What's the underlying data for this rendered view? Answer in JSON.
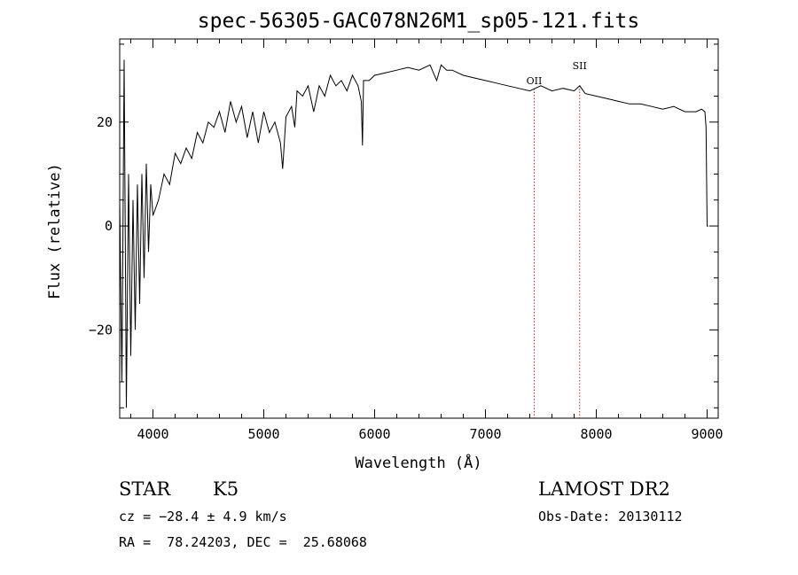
{
  "chart_data": {
    "type": "line",
    "title": "spec-56305-GAC078N26M1_sp05-121.fits",
    "xlabel": "Wavelength (Å)",
    "ylabel": "Flux (relative)",
    "xlim": [
      3700,
      9100
    ],
    "ylim": [
      -37,
      36
    ],
    "x_ticks": [
      4000,
      5000,
      6000,
      7000,
      8000,
      9000
    ],
    "y_ticks": [
      -20,
      0,
      20
    ],
    "series": [
      {
        "x": [
          3700,
          3720,
          3740,
          3760,
          3780,
          3800,
          3820,
          3840,
          3860,
          3880,
          3900,
          3920,
          3940,
          3960,
          3980,
          4000,
          4050,
          4100,
          4150,
          4200,
          4250,
          4300,
          4350,
          4400,
          4450,
          4500,
          4550,
          4600,
          4650,
          4700,
          4750,
          4800,
          4850,
          4900,
          4950,
          5000,
          5050,
          5100,
          5150,
          5170,
          5200,
          5250,
          5280,
          5300,
          5350,
          5400,
          5450,
          5500,
          5550,
          5600,
          5650,
          5700,
          5750,
          5800,
          5850,
          5880,
          5890,
          5900,
          5950,
          6000,
          6100,
          6200,
          6300,
          6400,
          6500,
          6560,
          6600,
          6650,
          6700,
          6800,
          6900,
          7000,
          7100,
          7200,
          7300,
          7400,
          7500,
          7600,
          7700,
          7800,
          7850,
          7900,
          8000,
          8100,
          8200,
          8300,
          8400,
          8500,
          8600,
          8700,
          8800,
          8900,
          8950,
          8980,
          8990,
          9000,
          9010
        ],
        "y": [
          5,
          -30,
          32,
          -35,
          10,
          -25,
          5,
          -20,
          8,
          -15,
          10,
          -10,
          12,
          -5,
          8,
          2,
          5,
          10,
          8,
          14,
          12,
          15,
          13,
          18,
          16,
          20,
          19,
          22,
          18,
          24,
          20,
          23,
          17,
          22,
          16,
          22,
          18,
          20,
          16,
          11,
          21,
          23,
          19,
          26,
          25,
          27,
          22,
          27,
          25,
          29,
          27,
          28,
          26,
          29,
          27,
          24,
          15.5,
          28,
          28,
          29,
          29.5,
          30,
          30.5,
          30,
          31,
          28,
          31,
          30,
          30,
          29,
          28.5,
          28,
          27.5,
          27,
          26.5,
          26,
          27,
          26,
          26.5,
          26,
          27,
          25.5,
          25,
          24.5,
          24,
          23.5,
          23.5,
          23,
          22.5,
          23,
          22,
          22,
          22.5,
          22,
          19,
          0,
          0
        ]
      }
    ],
    "lines": [
      {
        "label": "OII",
        "x": 7440
      },
      {
        "label": "SII",
        "x": 7850
      }
    ]
  },
  "info": {
    "class": "STAR",
    "subclass": "K5",
    "survey": "LAMOST DR2",
    "cz": "cz = −28.4 ± 4.9 km/s",
    "obsdate": "Obs-Date: 20130112",
    "radec": "RA =  78.24203, DEC =  25.68068"
  }
}
